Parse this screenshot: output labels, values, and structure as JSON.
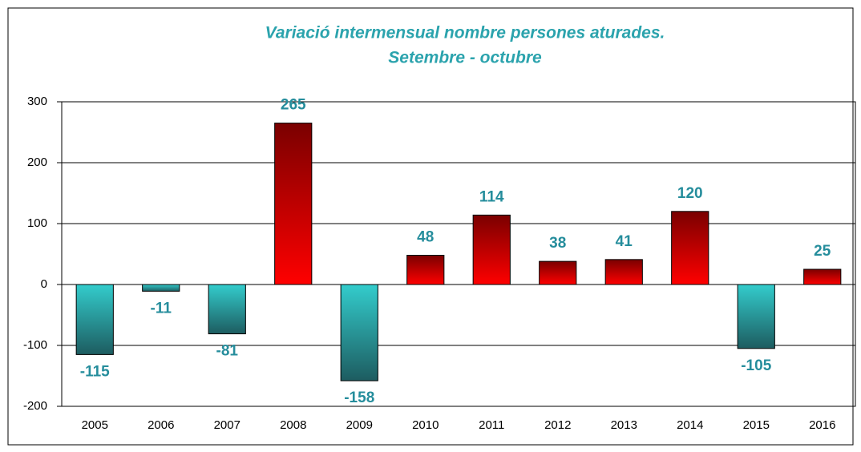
{
  "chart_data": {
    "type": "bar",
    "title": "Variació intermensual nombre persones aturades.",
    "subtitle": "Setembre - octubre",
    "categories": [
      "2005",
      "2006",
      "2007",
      "2008",
      "2009",
      "2010",
      "2011",
      "2012",
      "2013",
      "2014",
      "2015",
      "2016"
    ],
    "values": [
      -115,
      -11,
      -81,
      265,
      -158,
      48,
      114,
      38,
      41,
      120,
      -105,
      25
    ],
    "colors": {
      "positive": "#ff0000",
      "negative": "#33cccc"
    },
    "ylim": [
      -200,
      300
    ],
    "yticks": [
      -200,
      -100,
      0,
      100,
      200,
      300
    ],
    "grid": true
  }
}
